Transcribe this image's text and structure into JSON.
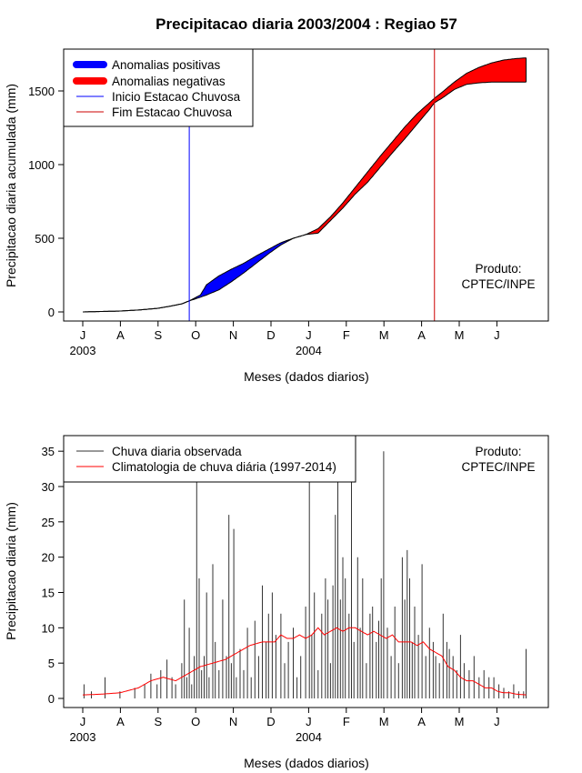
{
  "title": "Precipitacao diaria 2003/2004 : Regiao 57",
  "chart_data": [
    {
      "type": "area",
      "ylabel": "Precipitacao diaria acumulada (mm)",
      "xlabel": "Meses (dados diarios)",
      "xlim_day": [
        0,
        365
      ],
      "ylim": [
        0,
        1750
      ],
      "yticks": [
        0,
        500,
        1000,
        1500
      ],
      "month_ticks": [
        "J",
        "A",
        "S",
        "O",
        "N",
        "D",
        "J",
        "F",
        "M",
        "A",
        "M",
        "J"
      ],
      "year_labels": [
        {
          "text": "2003",
          "at_tick": 0
        },
        {
          "text": "2004",
          "at_tick": 6
        }
      ],
      "legend": [
        "Anomalias positivas",
        "Anomalias negativas",
        "Inicio Estacao Chuvosa",
        "Fim Estacao Chuvosa"
      ],
      "legend_position": "top-left",
      "credit": [
        "Produto:",
        "CPTEC/INPE"
      ],
      "colors": {
        "positive": "#0000ff",
        "negative": "#ff0000",
        "start": "#0000ff",
        "end": "#cc0000",
        "line": "#000000"
      },
      "rainy_season_start_day": 86,
      "rainy_season_end_day": 284,
      "observed_cumulative": [
        [
          0,
          0
        ],
        [
          15,
          3
        ],
        [
          30,
          6
        ],
        [
          45,
          13
        ],
        [
          60,
          24
        ],
        [
          70,
          38
        ],
        [
          80,
          55
        ],
        [
          86,
          75
        ],
        [
          95,
          115
        ],
        [
          100,
          185
        ],
        [
          110,
          245
        ],
        [
          120,
          290
        ],
        [
          130,
          330
        ],
        [
          140,
          380
        ],
        [
          150,
          425
        ],
        [
          160,
          470
        ],
        [
          170,
          500
        ],
        [
          180,
          525
        ],
        [
          190,
          535
        ],
        [
          200,
          620
        ],
        [
          210,
          705
        ],
        [
          220,
          800
        ],
        [
          230,
          880
        ],
        [
          240,
          980
        ],
        [
          250,
          1080
        ],
        [
          260,
          1175
        ],
        [
          270,
          1275
        ],
        [
          280,
          1375
        ],
        [
          284,
          1420
        ],
        [
          290,
          1450
        ],
        [
          300,
          1510
        ],
        [
          310,
          1545
        ],
        [
          320,
          1555
        ],
        [
          330,
          1560
        ],
        [
          340,
          1560
        ],
        [
          350,
          1560
        ],
        [
          358,
          1560
        ]
      ],
      "climatology_cumulative": [
        [
          0,
          0
        ],
        [
          15,
          3
        ],
        [
          30,
          6
        ],
        [
          45,
          13
        ],
        [
          60,
          24
        ],
        [
          70,
          38
        ],
        [
          80,
          55
        ],
        [
          86,
          75
        ],
        [
          95,
          100
        ],
        [
          100,
          115
        ],
        [
          110,
          150
        ],
        [
          120,
          205
        ],
        [
          130,
          265
        ],
        [
          140,
          330
        ],
        [
          150,
          395
        ],
        [
          160,
          455
        ],
        [
          170,
          500
        ],
        [
          180,
          525
        ],
        [
          190,
          565
        ],
        [
          200,
          645
        ],
        [
          210,
          740
        ],
        [
          220,
          845
        ],
        [
          230,
          950
        ],
        [
          240,
          1055
        ],
        [
          250,
          1155
        ],
        [
          260,
          1255
        ],
        [
          270,
          1345
        ],
        [
          280,
          1420
        ],
        [
          284,
          1450
        ],
        [
          290,
          1490
        ],
        [
          300,
          1560
        ],
        [
          310,
          1620
        ],
        [
          320,
          1660
        ],
        [
          330,
          1690
        ],
        [
          340,
          1710
        ],
        [
          350,
          1720
        ],
        [
          358,
          1725
        ]
      ]
    },
    {
      "type": "line",
      "ylabel": "Precipitacao diaria (mm)",
      "xlabel": "Meses (dados diarios)",
      "xlim_day": [
        0,
        365
      ],
      "ylim": [
        0,
        37
      ],
      "yticks": [
        0,
        5,
        10,
        15,
        20,
        25,
        30,
        35
      ],
      "month_ticks": [
        "J",
        "A",
        "S",
        "O",
        "N",
        "D",
        "J",
        "F",
        "M",
        "A",
        "M",
        "J"
      ],
      "year_labels": [
        {
          "text": "2003",
          "at_tick": 0
        },
        {
          "text": "2004",
          "at_tick": 6
        }
      ],
      "legend": [
        "Chuva diaria observada",
        "Climatologia de chuva diária (1997-2014)"
      ],
      "legend_position": "top-left",
      "credit": [
        "Produto:",
        "CPTEC/INPE"
      ],
      "colors": {
        "observed": "#333333",
        "climatology": "#ff0000"
      },
      "observed_spikes": [
        [
          1,
          2
        ],
        [
          7,
          1
        ],
        [
          18,
          3
        ],
        [
          30,
          1
        ],
        [
          42,
          1.5
        ],
        [
          50,
          2
        ],
        [
          55,
          3.5
        ],
        [
          60,
          2
        ],
        [
          63,
          4
        ],
        [
          68,
          5.5
        ],
        [
          72,
          3
        ],
        [
          75,
          2
        ],
        [
          80,
          5
        ],
        [
          82,
          14
        ],
        [
          84,
          3
        ],
        [
          86,
          10
        ],
        [
          88,
          2
        ],
        [
          90,
          6
        ],
        [
          92,
          31
        ],
        [
          94,
          17
        ],
        [
          96,
          4
        ],
        [
          98,
          6
        ],
        [
          100,
          15
        ],
        [
          102,
          3
        ],
        [
          105,
          19
        ],
        [
          107,
          8
        ],
        [
          110,
          4
        ],
        [
          113,
          14
        ],
        [
          116,
          6
        ],
        [
          118,
          26
        ],
        [
          120,
          5
        ],
        [
          122,
          24
        ],
        [
          124,
          3
        ],
        [
          127,
          7
        ],
        [
          130,
          4
        ],
        [
          133,
          10
        ],
        [
          136,
          3
        ],
        [
          139,
          11
        ],
        [
          142,
          6
        ],
        [
          145,
          16
        ],
        [
          148,
          8
        ],
        [
          150,
          12
        ],
        [
          153,
          15
        ],
        [
          156,
          9
        ],
        [
          160,
          12
        ],
        [
          163,
          5
        ],
        [
          166,
          8
        ],
        [
          170,
          10
        ],
        [
          173,
          3
        ],
        [
          176,
          6
        ],
        [
          180,
          13
        ],
        [
          183,
          34
        ],
        [
          185,
          9
        ],
        [
          187,
          15
        ],
        [
          190,
          4
        ],
        [
          193,
          12
        ],
        [
          196,
          17
        ],
        [
          198,
          14
        ],
        [
          200,
          5
        ],
        [
          202,
          16
        ],
        [
          204,
          26
        ],
        [
          206,
          34
        ],
        [
          208,
          14
        ],
        [
          210,
          20
        ],
        [
          212,
          17
        ],
        [
          215,
          12
        ],
        [
          217,
          36
        ],
        [
          219,
          8
        ],
        [
          222,
          20
        ],
        [
          224,
          10
        ],
        [
          226,
          17
        ],
        [
          229,
          5
        ],
        [
          232,
          12
        ],
        [
          234,
          13
        ],
        [
          237,
          8
        ],
        [
          239,
          11
        ],
        [
          241,
          17
        ],
        [
          243,
          35
        ],
        [
          246,
          10
        ],
        [
          249,
          6
        ],
        [
          252,
          13
        ],
        [
          255,
          5
        ],
        [
          258,
          20
        ],
        [
          260,
          14
        ],
        [
          262,
          21
        ],
        [
          264,
          17
        ],
        [
          266,
          8
        ],
        [
          268,
          13
        ],
        [
          271,
          9
        ],
        [
          274,
          19
        ],
        [
          277,
          6
        ],
        [
          280,
          10
        ],
        [
          283,
          8
        ],
        [
          285,
          6
        ],
        [
          288,
          5
        ],
        [
          291,
          12
        ],
        [
          294,
          8
        ],
        [
          296,
          7
        ],
        [
          299,
          6
        ],
        [
          302,
          4
        ],
        [
          305,
          9
        ],
        [
          308,
          5
        ],
        [
          312,
          4
        ],
        [
          316,
          6
        ],
        [
          320,
          3
        ],
        [
          324,
          4
        ],
        [
          328,
          3
        ],
        [
          332,
          3
        ],
        [
          336,
          2
        ],
        [
          340,
          1.5
        ],
        [
          344,
          1
        ],
        [
          348,
          2
        ],
        [
          352,
          1
        ],
        [
          356,
          1
        ],
        [
          358,
          7
        ]
      ],
      "climatology": [
        [
          0,
          0.5
        ],
        [
          15,
          0.6
        ],
        [
          30,
          0.8
        ],
        [
          45,
          1.5
        ],
        [
          55,
          2.5
        ],
        [
          65,
          3
        ],
        [
          75,
          2.5
        ],
        [
          85,
          3.5
        ],
        [
          95,
          4.5
        ],
        [
          105,
          5
        ],
        [
          115,
          5.5
        ],
        [
          125,
          6.5
        ],
        [
          135,
          7.5
        ],
        [
          145,
          8
        ],
        [
          155,
          8
        ],
        [
          160,
          9
        ],
        [
          165,
          8.5
        ],
        [
          170,
          8.5
        ],
        [
          175,
          9
        ],
        [
          180,
          8.5
        ],
        [
          185,
          9
        ],
        [
          190,
          10
        ],
        [
          195,
          9
        ],
        [
          200,
          9.5
        ],
        [
          205,
          10
        ],
        [
          210,
          9.5
        ],
        [
          215,
          10
        ],
        [
          220,
          10
        ],
        [
          225,
          9.5
        ],
        [
          230,
          9
        ],
        [
          235,
          9.5
        ],
        [
          240,
          9
        ],
        [
          245,
          8.5
        ],
        [
          250,
          9
        ],
        [
          255,
          8
        ],
        [
          260,
          8
        ],
        [
          265,
          8
        ],
        [
          270,
          7.5
        ],
        [
          275,
          8
        ],
        [
          280,
          7
        ],
        [
          285,
          6.5
        ],
        [
          290,
          6
        ],
        [
          295,
          4.5
        ],
        [
          300,
          4
        ],
        [
          305,
          3
        ],
        [
          310,
          2.5
        ],
        [
          315,
          2.5
        ],
        [
          320,
          2
        ],
        [
          325,
          1.5
        ],
        [
          330,
          1.5
        ],
        [
          335,
          1
        ],
        [
          340,
          0.8
        ],
        [
          345,
          0.8
        ],
        [
          350,
          0.6
        ],
        [
          358,
          0.5
        ]
      ]
    }
  ]
}
